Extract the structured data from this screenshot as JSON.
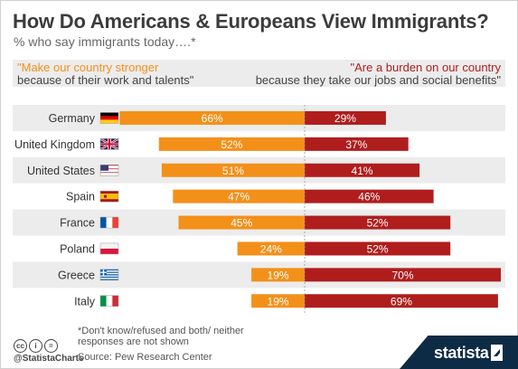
{
  "title": "How Do Americans & Europeans View Immigrants?",
  "subtitle": "% who say immigrants today….*",
  "header": {
    "left_line1": "\"Make our country stronger",
    "left_line2": "because of their work and talents\"",
    "right_line1": "\"Are a burden on our country",
    "right_line2": "because they take our jobs and social benefits\""
  },
  "colors": {
    "stronger": "#f39019",
    "burden": "#b01d1d",
    "band": "#ececec"
  },
  "chart_data": {
    "type": "bar",
    "orientation": "horizontal-diverging",
    "categories": [
      "Germany",
      "United Kingdom",
      "United States",
      "Spain",
      "France",
      "Poland",
      "Greece",
      "Italy"
    ],
    "flags": [
      "flag-germany",
      "flag-united-kingdom",
      "flag-united-states",
      "flag-spain",
      "flag-france",
      "flag-poland",
      "flag-greece",
      "flag-italy"
    ],
    "series": [
      {
        "name": "\"Make our country stronger because of their work and talents\"",
        "values": [
          66,
          52,
          51,
          47,
          45,
          24,
          19,
          19
        ],
        "labels": [
          "66%",
          "52%",
          "51%",
          "47%",
          "45%",
          "24%",
          "19%",
          "19%"
        ],
        "color": "#f39019"
      },
      {
        "name": "\"Are a burden on our country because they take our jobs and social benefits\"",
        "values": [
          29,
          37,
          41,
          46,
          52,
          52,
          70,
          69
        ],
        "labels": [
          "29%",
          "37%",
          "41%",
          "46%",
          "52%",
          "52%",
          "70%",
          "69%"
        ],
        "color": "#b01d1d"
      }
    ],
    "unit": "%",
    "legend": "top"
  },
  "footnote": "*Don't know/refused and both/ neither responses are not shown",
  "source": "Source: Pew Research Center",
  "handle": "@StatistaCharts",
  "brand": "statista",
  "license_icons": [
    "cc-icon",
    "by-icon",
    "nd-icon"
  ]
}
